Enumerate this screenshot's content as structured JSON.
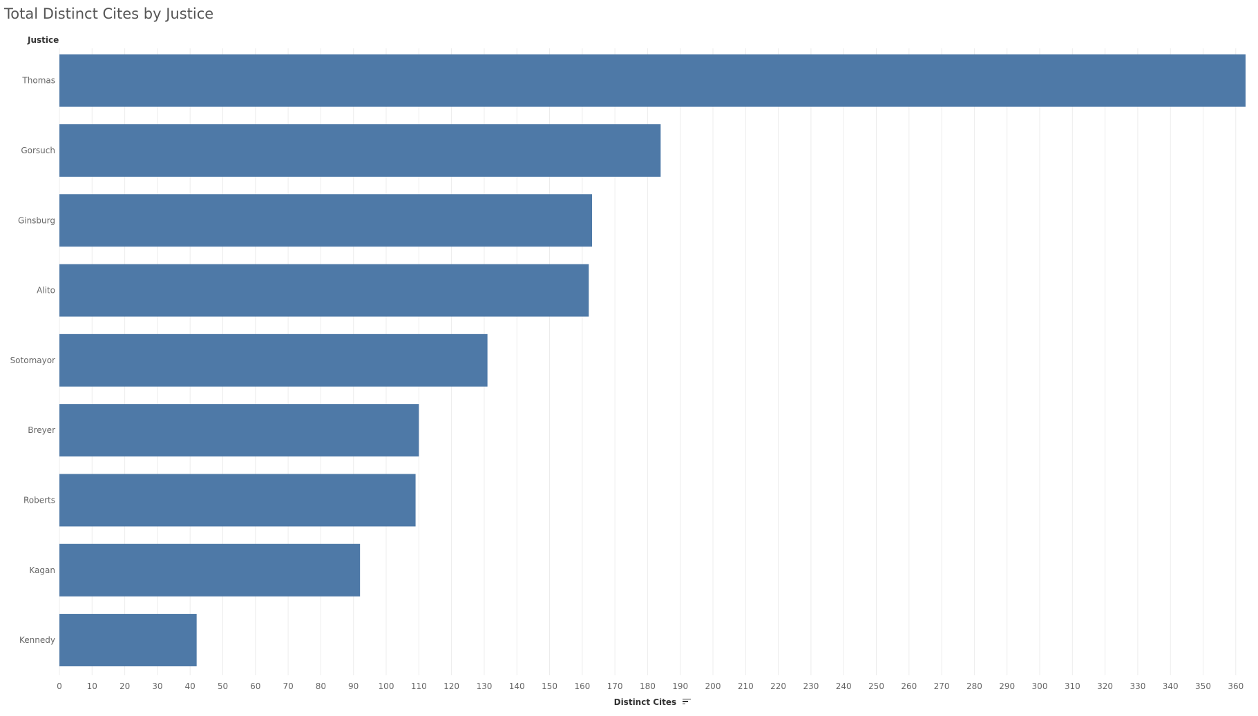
{
  "title": "Total Distinct Cites by Justice",
  "row_header": "Justice",
  "icons": {
    "sort": "sort-descending-icon"
  },
  "colors": {
    "bar": "#4e79a7",
    "grid": "#ececec",
    "text": "#666666"
  },
  "chart_data": {
    "type": "bar",
    "orientation": "horizontal",
    "categories": [
      "Thomas",
      "Gorsuch",
      "Ginsburg",
      "Alito",
      "Sotomayor",
      "Breyer",
      "Roberts",
      "Kagan",
      "Kennedy"
    ],
    "values": [
      363,
      184,
      163,
      162,
      131,
      110,
      109,
      92,
      42
    ],
    "xlabel": "Distinct Cites",
    "ylabel": "Justice",
    "xlim": [
      0,
      363
    ],
    "xticks": [
      0,
      10,
      20,
      30,
      40,
      50,
      60,
      70,
      80,
      90,
      100,
      110,
      120,
      130,
      140,
      150,
      160,
      170,
      180,
      190,
      200,
      210,
      220,
      230,
      240,
      250,
      260,
      270,
      280,
      290,
      300,
      310,
      320,
      330,
      340,
      350,
      360
    ],
    "grid": "vertical",
    "sort": "descending"
  }
}
